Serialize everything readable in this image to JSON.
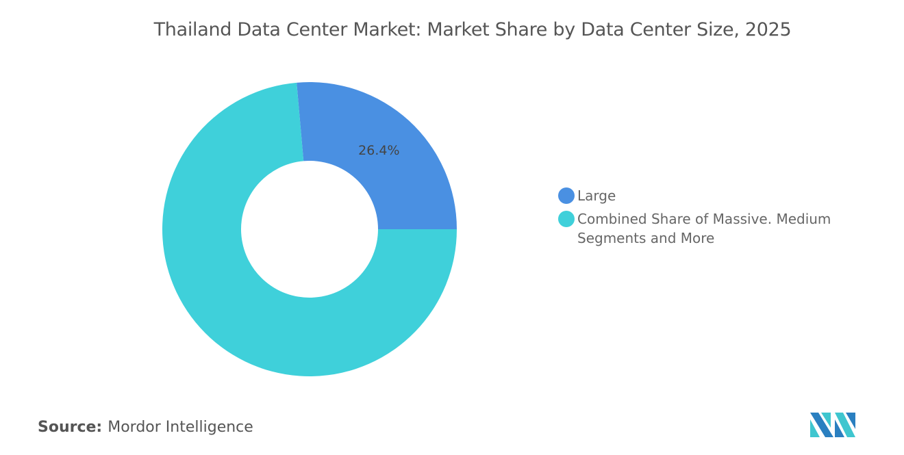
{
  "chart_data": {
    "type": "pie",
    "donut": true,
    "title": "Thailand Data Center Market: Market Share by Data Center Size, 2025",
    "categories": [
      "Large",
      "Combined Share of Massive. Medium Segments and More"
    ],
    "values": [
      26.4,
      73.6
    ],
    "data_labels": [
      "26.4%",
      ""
    ],
    "colors": [
      "#4A90E2",
      "#3FD0DA"
    ],
    "legend_position": "right"
  },
  "source": {
    "label": "Source:",
    "text": "Mordor Intelligence"
  },
  "logo": {
    "text": "MI",
    "colors": [
      "#2A7FC0",
      "#3FC6CF"
    ]
  }
}
